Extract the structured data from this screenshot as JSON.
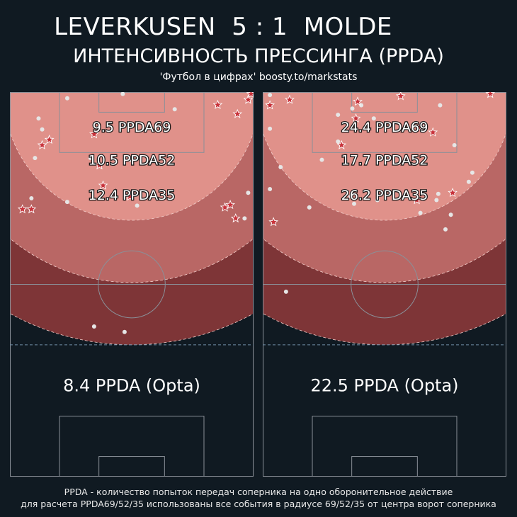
{
  "header": {
    "title": "LEVERKUSEN  5 : 1  MOLDE",
    "subtitle": "ИНТЕНСИВНОСТЬ ПРЕССИНГА (PPDA)",
    "source": "'Футбол в цифрах' boosty.to/markstats"
  },
  "footer": {
    "line1": "PPDA - количество попыток передач соперника на одно оборонительное действие",
    "line2": "для расчета PPDA69/52/35 использованы все события в радиусе 69/52/35 от центра ворот соперника"
  },
  "colors": {
    "background": "#101a22",
    "zone35": "#e0918a",
    "zone52": "#b96765",
    "zone69": "#7e3537",
    "pitch_line": "#8a9098",
    "star": "#c8323a",
    "dot": "#e6e6e6"
  },
  "chart_data": [
    {
      "type": "scatter",
      "team": "LEVERKUSEN",
      "x_range": [
        0,
        68
      ],
      "y_range": [
        0,
        105
      ],
      "radii": [
        35,
        52,
        69
      ],
      "zones": [
        {
          "radius": 35,
          "label": "12.4 PPDA35",
          "value": 12.4
        },
        {
          "radius": 52,
          "label": "10.5 PPDA52",
          "value": 10.5
        },
        {
          "radius": 69,
          "label": "9.5 PPDA69",
          "value": 9.5
        }
      ],
      "opta_label": "8.4 PPDA (Opta)",
      "opta_value": 8.4,
      "stars": [
        [
          11,
          13
        ],
        [
          9,
          14.5
        ],
        [
          3.5,
          32
        ],
        [
          6,
          32
        ],
        [
          63,
          34.5
        ],
        [
          60,
          31.5
        ],
        [
          61.5,
          30.8
        ],
        [
          33.5,
          28.5
        ],
        [
          26,
          25.5
        ],
        [
          25,
          20
        ],
        [
          23.5,
          11.5
        ],
        [
          58,
          3.5
        ],
        [
          63.5,
          6
        ],
        [
          66.5,
          2.1
        ],
        [
          67.3,
          0.5
        ]
      ],
      "dots": [
        [
          23.5,
          64
        ],
        [
          32,
          65.5
        ],
        [
          35.5,
          31
        ],
        [
          65.5,
          34.5
        ],
        [
          16,
          30
        ],
        [
          6,
          29
        ],
        [
          66.5,
          27.5
        ],
        [
          33.5,
          18.5
        ],
        [
          7,
          18
        ],
        [
          22.5,
          18
        ],
        [
          9,
          10.2
        ],
        [
          8,
          7.2
        ],
        [
          16,
          1.7
        ],
        [
          31.5,
          0.5
        ],
        [
          46,
          4.7
        ]
      ]
    },
    {
      "type": "scatter",
      "team": "MOLDE",
      "x_range": [
        0,
        68
      ],
      "y_range": [
        0,
        105
      ],
      "radii": [
        35,
        52,
        69
      ],
      "zones": [
        {
          "radius": 35,
          "label": "26.2 PPDA35",
          "value": 26.2
        },
        {
          "radius": 52,
          "label": "17.7 PPDA52",
          "value": 17.7
        },
        {
          "radius": 69,
          "label": "24.4 PPDA69",
          "value": 24.4
        }
      ],
      "opta_label": "22.5 PPDA (Opta)",
      "opta_value": 22.5,
      "stars": [
        [
          3,
          35.5
        ],
        [
          43,
          29.5
        ],
        [
          53,
          27.5
        ],
        [
          22,
          14.5
        ],
        [
          44,
          9.5
        ],
        [
          47.5,
          11
        ],
        [
          26,
          7.2
        ],
        [
          26.5,
          2.6
        ],
        [
          2,
          3.6
        ],
        [
          7.5,
          2.1
        ],
        [
          38.5,
          1.1
        ],
        [
          63.5,
          0.5
        ]
      ],
      "dots": [
        [
          6.5,
          54.5
        ],
        [
          51,
          37.5
        ],
        [
          52.5,
          33.5
        ],
        [
          44,
          33
        ],
        [
          25.5,
          30.5
        ],
        [
          32,
          29.5
        ],
        [
          48.5,
          29.5
        ],
        [
          13,
          31.5
        ],
        [
          24.5,
          28.5
        ],
        [
          49,
          27.8
        ],
        [
          2,
          26.5
        ],
        [
          57.5,
          24.5
        ],
        [
          5,
          20.5
        ],
        [
          16.5,
          18.5
        ],
        [
          58.5,
          22
        ],
        [
          53.5,
          14.5
        ],
        [
          21,
          13.5
        ],
        [
          2,
          10
        ],
        [
          31,
          7.2
        ],
        [
          21,
          6.2
        ],
        [
          25,
          4.5
        ],
        [
          27.5,
          3.6
        ],
        [
          49.5,
          3.6
        ],
        [
          2,
          0.8
        ]
      ]
    }
  ]
}
